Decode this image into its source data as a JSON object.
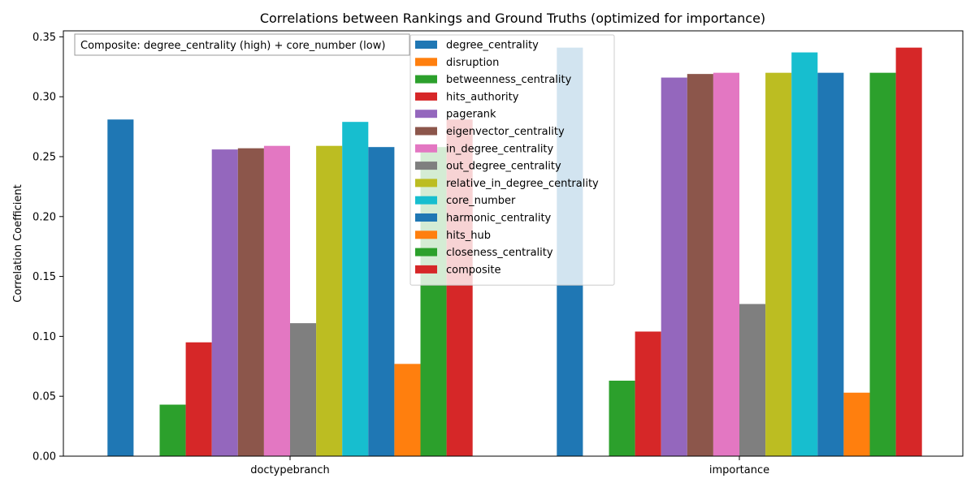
{
  "chart_data": {
    "type": "bar",
    "title": "Correlations between Rankings and Ground Truths (optimized for importance)",
    "xlabel": "",
    "ylabel": "Correlation Coefficient",
    "categories": [
      "doctypebranch",
      "importance"
    ],
    "ylim": [
      0,
      0.355
    ],
    "yticks": [
      0.0,
      0.05,
      0.1,
      0.15,
      0.2,
      0.25,
      0.3,
      0.35
    ],
    "ytick_labels": [
      "0.00",
      "0.05",
      "0.10",
      "0.15",
      "0.20",
      "0.25",
      "0.30",
      "0.35"
    ],
    "grid": false,
    "legend_position": "top-center",
    "annotation": "Composite: degree_centrality (high) + core_number (low)",
    "series": [
      {
        "name": "degree_centrality",
        "color": "#1f77b4",
        "values": [
          0.281,
          0.341
        ]
      },
      {
        "name": "disruption",
        "color": "#ff7f0e",
        "values": [
          0.0,
          0.0
        ]
      },
      {
        "name": "betweenness_centrality",
        "color": "#2ca02c",
        "values": [
          0.043,
          0.063
        ]
      },
      {
        "name": "hits_authority",
        "color": "#d62728",
        "values": [
          0.095,
          0.104
        ]
      },
      {
        "name": "pagerank",
        "color": "#9467bd",
        "values": [
          0.256,
          0.316
        ]
      },
      {
        "name": "eigenvector_centrality",
        "color": "#8c564b",
        "values": [
          0.257,
          0.319
        ]
      },
      {
        "name": "in_degree_centrality",
        "color": "#e377c2",
        "values": [
          0.259,
          0.32
        ]
      },
      {
        "name": "out_degree_centrality",
        "color": "#7f7f7f",
        "values": [
          0.111,
          0.127
        ]
      },
      {
        "name": "relative_in_degree_centrality",
        "color": "#bcbd22",
        "values": [
          0.259,
          0.32
        ]
      },
      {
        "name": "core_number",
        "color": "#17becf",
        "values": [
          0.279,
          0.337
        ]
      },
      {
        "name": "harmonic_centrality",
        "color": "#1f77b4",
        "values": [
          0.258,
          0.32
        ]
      },
      {
        "name": "hits_hub",
        "color": "#ff7f0e",
        "values": [
          0.077,
          0.053
        ]
      },
      {
        "name": "closeness_centrality",
        "color": "#2ca02c",
        "values": [
          0.258,
          0.32
        ]
      },
      {
        "name": "composite",
        "color": "#d62728",
        "values": [
          0.281,
          0.341
        ]
      }
    ]
  }
}
